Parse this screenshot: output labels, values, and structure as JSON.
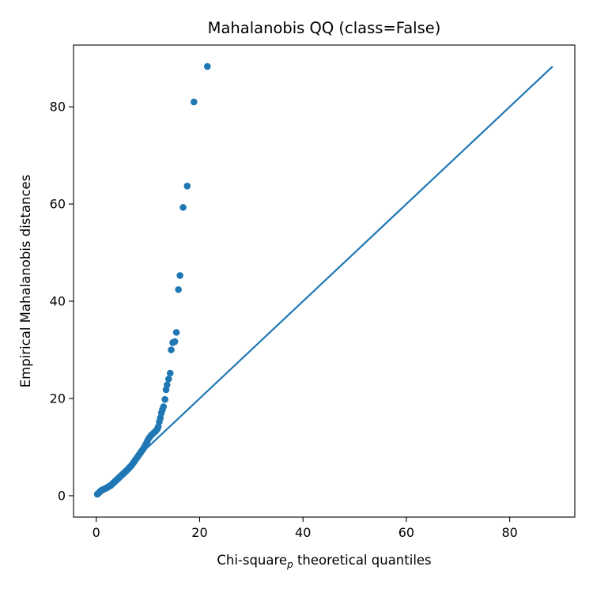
{
  "chart_data": {
    "type": "scatter",
    "title": "Mahalanobis QQ (class=False)",
    "xlabel_main": "Chi-square",
    "xlabel_subscript": "p",
    "xlabel_tail": " theoretical quantiles",
    "ylabel": "Empirical Mahalanobis distances",
    "xlim": [
      -4.4,
      92.6
    ],
    "ylim": [
      -4.4,
      92.7
    ],
    "xticks": [
      0,
      20,
      40,
      60,
      80
    ],
    "yticks": [
      0,
      20,
      40,
      60,
      80
    ],
    "grid": false,
    "color": "#1f77b4",
    "series": [
      {
        "kind": "scatter",
        "x": [
          0.2,
          0.3,
          0.4,
          0.5,
          0.6,
          0.7,
          0.8,
          0.9,
          1.0,
          1.2,
          1.4,
          1.6,
          1.8,
          2.0,
          2.2,
          2.4,
          2.6,
          2.8,
          3.0,
          3.2,
          3.4,
          3.6,
          3.8,
          4.0,
          4.2,
          4.4,
          4.6,
          4.8,
          5.0,
          5.2,
          5.4,
          5.6,
          5.8,
          6.0,
          6.2,
          6.4,
          6.6,
          6.8,
          7.0,
          7.2,
          7.4,
          7.6,
          7.8,
          8.0,
          8.2,
          8.4,
          8.6,
          8.8,
          9.0,
          9.2,
          9.4,
          9.6,
          9.8,
          10.0,
          10.3,
          10.6,
          10.9,
          11.2,
          11.5,
          11.8,
          12.0,
          12.2,
          12.4,
          12.6,
          12.8,
          13.0,
          13.3,
          13.5,
          13.7,
          14.0,
          14.3,
          14.5,
          14.8,
          15.2,
          15.5,
          15.9,
          16.2,
          16.8,
          17.6,
          18.9,
          21.5
        ],
        "y": [
          0.3,
          0.4,
          0.5,
          0.6,
          0.7,
          0.8,
          0.9,
          1.0,
          1.1,
          1.2,
          1.3,
          1.4,
          1.5,
          1.6,
          1.7,
          1.9,
          2.0,
          2.1,
          2.3,
          2.5,
          2.7,
          2.9,
          3.1,
          3.3,
          3.5,
          3.7,
          3.9,
          4.1,
          4.3,
          4.5,
          4.7,
          4.9,
          5.1,
          5.3,
          5.5,
          5.8,
          6.0,
          6.2,
          6.5,
          6.8,
          7.1,
          7.4,
          7.7,
          8.0,
          8.3,
          8.6,
          8.9,
          9.2,
          9.5,
          9.8,
          10.2,
          10.6,
          11.0,
          11.5,
          12.0,
          12.4,
          12.7,
          13.0,
          13.3,
          13.7,
          14.2,
          15.2,
          16.0,
          17.0,
          17.7,
          18.3,
          19.8,
          21.8,
          22.8,
          24.0,
          25.2,
          30.0,
          31.5,
          31.7,
          33.6,
          42.4,
          45.3,
          59.3,
          63.7,
          81.0,
          88.3
        ]
      },
      {
        "kind": "line",
        "x": [
          0,
          88.3
        ],
        "y": [
          0,
          88.3
        ]
      }
    ]
  }
}
